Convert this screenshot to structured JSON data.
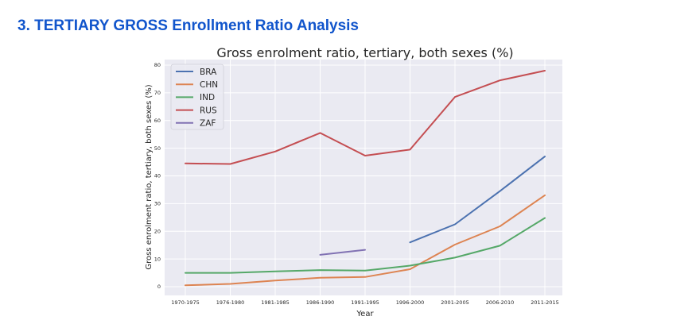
{
  "page": {
    "section_title": "3. TERTIARY GROSS Enrollment Ratio Analysis"
  },
  "colors": {
    "section_title": "#1155cc",
    "plot_background": "#eaeaf2",
    "grid": "#ffffff"
  },
  "chart_data": {
    "type": "line",
    "title": "Gross enrolment ratio, tertiary, both sexes (%)",
    "xlabel": "Year",
    "ylabel": "Gross enrolment ratio, tertiary, both sexes (%)",
    "categories": [
      "1970-1975",
      "1976-1980",
      "1981-1985",
      "1986-1990",
      "1991-1995",
      "1996-2000",
      "2001-2005",
      "2006-2010",
      "2011-2015"
    ],
    "ylim": [
      0,
      80
    ],
    "yticks": [
      0,
      10,
      20,
      30,
      40,
      50,
      60,
      70,
      80
    ],
    "grid": true,
    "legend_position": "top-left",
    "series": [
      {
        "name": "BRA",
        "color": "#4c72b0",
        "values": [
          null,
          null,
          null,
          null,
          null,
          16.0,
          22.5,
          34.5,
          47.0
        ]
      },
      {
        "name": "CHN",
        "color": "#dd8452",
        "values": [
          0.5,
          1.0,
          2.2,
          3.2,
          3.5,
          6.3,
          15.2,
          21.8,
          33.0
        ]
      },
      {
        "name": "IND",
        "color": "#55a868",
        "values": [
          5.0,
          5.0,
          5.5,
          6.0,
          5.8,
          7.6,
          10.5,
          14.8,
          24.8
        ]
      },
      {
        "name": "RUS",
        "color": "#c44e52",
        "values": [
          44.5,
          44.3,
          48.8,
          55.5,
          47.3,
          49.5,
          68.5,
          74.5,
          78.0
        ]
      },
      {
        "name": "ZAF",
        "color": "#8172b3",
        "values": [
          null,
          null,
          null,
          11.5,
          13.3,
          null,
          null,
          null,
          null
        ]
      }
    ]
  }
}
